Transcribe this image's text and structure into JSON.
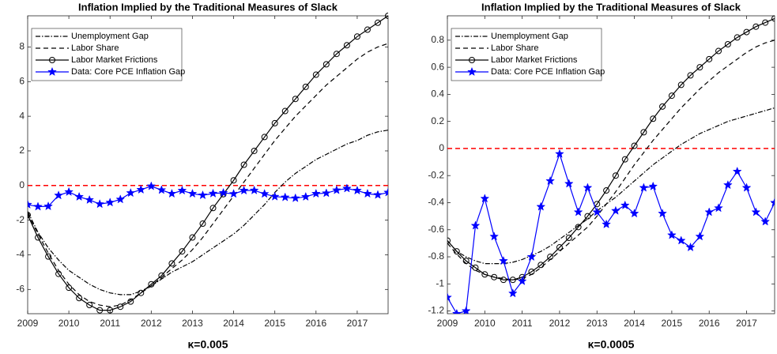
{
  "chart_data": [
    {
      "type": "line",
      "title": "Inflation Implied by the Traditional Measures of Slack",
      "xlabel": "κ=0.005",
      "x": [
        2009,
        2009.25,
        2009.5,
        2009.75,
        2010,
        2010.25,
        2010.5,
        2010.75,
        2011,
        2011.25,
        2011.5,
        2011.75,
        2012,
        2012.25,
        2012.5,
        2012.75,
        2013,
        2013.25,
        2013.5,
        2013.75,
        2014,
        2014.25,
        2014.5,
        2014.75,
        2015,
        2015.25,
        2015.5,
        2015.75,
        2016,
        2016.25,
        2016.5,
        2016.75,
        2017,
        2017.25,
        2017.5,
        2017.75
      ],
      "xlim": [
        2009,
        2017.75
      ],
      "xticks": [
        2009,
        2010,
        2011,
        2012,
        2013,
        2014,
        2015,
        2016,
        2017
      ],
      "ylim": [
        -7.4,
        9.8
      ],
      "yticks": [
        -6,
        -4,
        -2,
        0,
        2,
        4,
        6,
        8
      ],
      "hline": 0,
      "hline_color": "#ff0000",
      "legend": "upper left",
      "series": [
        {
          "name": "Unemployment Gap",
          "color": "#000000",
          "style": "dashdot",
          "marker": "none",
          "values": [
            -1.5,
            -2.7,
            -3.6,
            -4.3,
            -4.9,
            -5.3,
            -5.7,
            -6.0,
            -6.2,
            -6.3,
            -6.3,
            -6.1,
            -5.8,
            -5.4,
            -5.0,
            -4.7,
            -4.4,
            -4.0,
            -3.6,
            -3.2,
            -2.8,
            -2.3,
            -1.7,
            -1.1,
            -0.4,
            0.2,
            0.7,
            1.1,
            1.5,
            1.8,
            2.1,
            2.4,
            2.6,
            2.9,
            3.1,
            3.2
          ]
        },
        {
          "name": "Labor Share",
          "color": "#000000",
          "style": "dashed",
          "marker": "none",
          "values": [
            -1.6,
            -2.8,
            -3.9,
            -4.9,
            -5.7,
            -6.3,
            -6.7,
            -6.9,
            -7.0,
            -6.9,
            -6.6,
            -6.2,
            -5.8,
            -5.3,
            -4.8,
            -4.3,
            -3.7,
            -3.0,
            -2.2,
            -1.4,
            -0.6,
            0.2,
            1.0,
            1.8,
            2.6,
            3.3,
            4.0,
            4.6,
            5.2,
            5.8,
            6.3,
            6.8,
            7.3,
            7.7,
            8.0,
            8.2
          ]
        },
        {
          "name": "Labor Market Frictions",
          "color": "#000000",
          "style": "solid",
          "marker": "circle",
          "values": [
            -1.7,
            -3.0,
            -4.1,
            -5.1,
            -5.9,
            -6.5,
            -6.9,
            -7.2,
            -7.2,
            -7.0,
            -6.7,
            -6.2,
            -5.7,
            -5.2,
            -4.5,
            -3.8,
            -3.0,
            -2.2,
            -1.3,
            -0.5,
            0.3,
            1.2,
            2.0,
            2.8,
            3.6,
            4.3,
            5.0,
            5.7,
            6.4,
            7.0,
            7.6,
            8.1,
            8.6,
            9.0,
            9.4,
            9.8
          ]
        },
        {
          "name": "Data: Core PCE Inflation Gap",
          "color": "#0000ff",
          "style": "solid",
          "marker": "star",
          "values": [
            -1.1,
            -1.22,
            -1.2,
            -0.57,
            -0.37,
            -0.65,
            -0.83,
            -1.07,
            -0.98,
            -0.8,
            -0.43,
            -0.24,
            -0.04,
            -0.26,
            -0.47,
            -0.29,
            -0.47,
            -0.56,
            -0.46,
            -0.42,
            -0.48,
            -0.29,
            -0.28,
            -0.48,
            -0.64,
            -0.68,
            -0.73,
            -0.65,
            -0.47,
            -0.44,
            -0.27,
            -0.17,
            -0.29,
            -0.47,
            -0.54,
            -0.4
          ]
        }
      ]
    },
    {
      "type": "line",
      "title": "Inflation Implied by the Traditional Measures of Slack",
      "xlabel": "κ=0.0005",
      "x": [
        2009,
        2009.25,
        2009.5,
        2009.75,
        2010,
        2010.25,
        2010.5,
        2010.75,
        2011,
        2011.25,
        2011.5,
        2011.75,
        2012,
        2012.25,
        2012.5,
        2012.75,
        2013,
        2013.25,
        2013.5,
        2013.75,
        2014,
        2014.25,
        2014.5,
        2014.75,
        2015,
        2015.25,
        2015.5,
        2015.75,
        2016,
        2016.25,
        2016.5,
        2016.75,
        2017,
        2017.25,
        2017.5,
        2017.75
      ],
      "xlim": [
        2009,
        2017.75
      ],
      "xticks": [
        2009,
        2010,
        2011,
        2012,
        2013,
        2014,
        2015,
        2016,
        2017
      ],
      "ylim": [
        -1.22,
        0.98
      ],
      "yticks": [
        -1.2,
        -1,
        -0.8,
        -0.6,
        -0.4,
        -0.2,
        0,
        0.2,
        0.4,
        0.6,
        0.8
      ],
      "hline": 0,
      "hline_color": "#ff0000",
      "legend": "upper left",
      "series": [
        {
          "name": "Unemployment Gap",
          "color": "#000000",
          "style": "dashdot",
          "marker": "none",
          "values": [
            -0.68,
            -0.76,
            -0.8,
            -0.83,
            -0.85,
            -0.85,
            -0.85,
            -0.84,
            -0.82,
            -0.79,
            -0.76,
            -0.72,
            -0.67,
            -0.62,
            -0.57,
            -0.52,
            -0.46,
            -0.41,
            -0.36,
            -0.3,
            -0.24,
            -0.18,
            -0.12,
            -0.07,
            -0.02,
            0.03,
            0.07,
            0.11,
            0.14,
            0.17,
            0.2,
            0.22,
            0.24,
            0.26,
            0.28,
            0.3
          ]
        },
        {
          "name": "Labor Share",
          "color": "#000000",
          "style": "dashed",
          "marker": "none",
          "values": [
            -0.7,
            -0.78,
            -0.85,
            -0.9,
            -0.93,
            -0.95,
            -0.96,
            -0.97,
            -0.96,
            -0.93,
            -0.88,
            -0.82,
            -0.76,
            -0.7,
            -0.64,
            -0.58,
            -0.5,
            -0.41,
            -0.32,
            -0.22,
            -0.12,
            -0.03,
            0.06,
            0.14,
            0.22,
            0.3,
            0.37,
            0.44,
            0.5,
            0.56,
            0.61,
            0.66,
            0.71,
            0.75,
            0.78,
            0.8
          ]
        },
        {
          "name": "Labor Market Frictions",
          "color": "#000000",
          "style": "solid",
          "marker": "circle",
          "values": [
            -0.68,
            -0.76,
            -0.83,
            -0.88,
            -0.93,
            -0.95,
            -0.97,
            -0.97,
            -0.95,
            -0.91,
            -0.86,
            -0.8,
            -0.73,
            -0.66,
            -0.58,
            -0.5,
            -0.41,
            -0.31,
            -0.2,
            -0.08,
            0.02,
            0.12,
            0.22,
            0.31,
            0.39,
            0.47,
            0.54,
            0.6,
            0.66,
            0.72,
            0.77,
            0.82,
            0.86,
            0.9,
            0.93,
            0.96
          ]
        },
        {
          "name": "Data: Core PCE Inflation Gap",
          "color": "#0000ff",
          "style": "solid",
          "marker": "star",
          "values": [
            -1.1,
            -1.22,
            -1.2,
            -0.57,
            -0.37,
            -0.65,
            -0.83,
            -1.07,
            -0.98,
            -0.8,
            -0.43,
            -0.24,
            -0.04,
            -0.26,
            -0.47,
            -0.29,
            -0.47,
            -0.56,
            -0.46,
            -0.42,
            -0.48,
            -0.29,
            -0.28,
            -0.48,
            -0.64,
            -0.68,
            -0.73,
            -0.65,
            -0.47,
            -0.44,
            -0.27,
            -0.17,
            -0.29,
            -0.47,
            -0.54,
            -0.4
          ]
        }
      ]
    }
  ]
}
